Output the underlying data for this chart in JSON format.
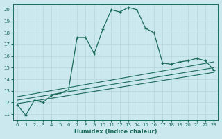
{
  "xlabel": "Humidex (Indice chaleur)",
  "bg_color": "#cce8ef",
  "line_color": "#1a6b5a",
  "grid_color": "#b8d8e0",
  "xlim": [
    -0.5,
    23.5
  ],
  "ylim": [
    10.5,
    20.5
  ],
  "yticks": [
    11,
    12,
    13,
    14,
    15,
    16,
    17,
    18,
    19,
    20
  ],
  "xticks": [
    0,
    1,
    2,
    3,
    4,
    5,
    6,
    7,
    8,
    9,
    10,
    11,
    12,
    13,
    14,
    15,
    16,
    17,
    18,
    19,
    20,
    21,
    22,
    23
  ],
  "curve1_x": [
    0,
    1,
    2,
    3,
    4,
    5,
    6,
    7,
    8,
    9,
    10,
    11,
    12,
    13,
    14,
    15,
    16,
    17,
    18,
    19,
    20,
    21,
    22,
    23
  ],
  "curve1_y": [
    11.8,
    10.9,
    12.2,
    12.0,
    12.6,
    12.8,
    13.1,
    17.6,
    17.6,
    16.2,
    18.3,
    20.0,
    19.8,
    20.2,
    20.0,
    18.4,
    18.0,
    15.4,
    15.3,
    15.5,
    15.6,
    15.8,
    15.6,
    14.8
  ],
  "line2_x": [
    0,
    23
  ],
  "line2_y": [
    11.9,
    14.6
  ],
  "line3_x": [
    0,
    23
  ],
  "line3_y": [
    12.2,
    15.0
  ],
  "line4_x": [
    0,
    23
  ],
  "line4_y": [
    12.5,
    15.5
  ]
}
